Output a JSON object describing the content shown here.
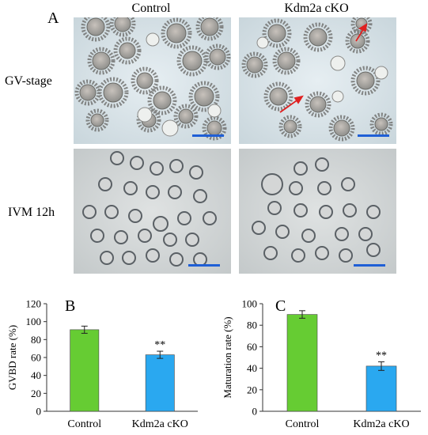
{
  "panel_a": {
    "letter": "A",
    "columns": [
      "Control",
      "Kdm2a cKO"
    ],
    "rows": [
      "GV-stage",
      "IVM 12h"
    ]
  },
  "panel_b": {
    "letter": "B"
  },
  "panel_c": {
    "letter": "C"
  },
  "colors": {
    "control": "#66cc33",
    "cko": "#2aa8f0",
    "scalebar": "#1f5fd6",
    "arrow": "#e02020"
  },
  "chart_data": [
    {
      "type": "bar",
      "panel": "B",
      "categories": [
        "Control",
        "Kdm2a cKO"
      ],
      "values": [
        91,
        63
      ],
      "errors": [
        4,
        4
      ],
      "annotations": [
        "",
        "**"
      ],
      "ylabel": "GVBD rate (%)",
      "ylim": [
        0,
        120
      ],
      "yticks": [
        0,
        20,
        40,
        60,
        80,
        100,
        120
      ],
      "grid": false
    },
    {
      "type": "bar",
      "panel": "C",
      "categories": [
        "Control",
        "Kdm2a cKO"
      ],
      "values": [
        90,
        42
      ],
      "errors": [
        3.5,
        4
      ],
      "annotations": [
        "",
        "**"
      ],
      "ylabel": "Maturation rate (%)",
      "ylim": [
        0,
        100
      ],
      "yticks": [
        0,
        20,
        40,
        60,
        80,
        100
      ],
      "grid": false
    }
  ]
}
